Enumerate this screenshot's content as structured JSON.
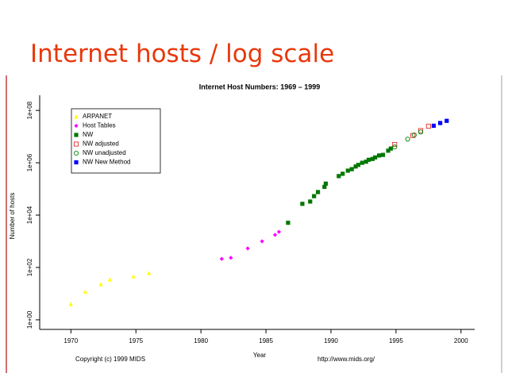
{
  "slide_title": "Internet hosts / log scale",
  "chart_data": {
    "type": "scatter",
    "title": "Internet Host Numbers: 1969 – 1999",
    "x_label": "Year",
    "y_label": "Number of hosts",
    "annotations": [
      "Copyright (c) 1999 MIDS",
      "http://www.mids.org/"
    ],
    "log_y": true,
    "legend_position": "upper-left",
    "xlim": [
      1967.6,
      2001.05
    ],
    "xticks": [
      1970,
      1975,
      1980,
      1985,
      1990,
      1995,
      2000
    ],
    "ylim": [
      0.43,
      380000000
    ],
    "yticks": [
      {
        "value": 1,
        "label": "1e+00"
      },
      {
        "value": 100,
        "label": "1e+02"
      },
      {
        "value": 10000,
        "label": "1e+04"
      },
      {
        "value": 1000000,
        "label": "1e+06"
      },
      {
        "value": 100000000,
        "label": "1e+08"
      }
    ],
    "series": [
      {
        "name": "ARPANET",
        "color": "#ffff00",
        "marker": "triangle",
        "x": [
          1970.0,
          1971.1,
          1972.3,
          1973.0,
          1974.8,
          1976.0
        ],
        "values": [
          4,
          12,
          23,
          35,
          46,
          62
        ]
      },
      {
        "name": "Host Tables",
        "color": "#ff00ff",
        "marker": "diamond",
        "x": [
          1981.6,
          1982.3,
          1983.6,
          1984.7,
          1985.7,
          1986.0
        ],
        "values": [
          213,
          235,
          532,
          1000,
          1760,
          2300
        ]
      },
      {
        "name": "NW",
        "color": "#007800",
        "marker": "square",
        "x": [
          1986.7,
          1987.8,
          1988.4,
          1988.7,
          1989.0,
          1989.5,
          1989.6,
          1990.6,
          1990.9,
          1991.3,
          1991.6,
          1991.9,
          1992.1,
          1992.4,
          1992.7,
          1992.9,
          1993.2,
          1993.4,
          1993.7,
          1994.0,
          1994.4,
          1994.6
        ],
        "values": [
          5100,
          27000,
          33000,
          53000,
          76000,
          120000,
          160000,
          310000,
          380000,
          500000,
          570000,
          720000,
          830000,
          1000000,
          1100000,
          1300000,
          1400000,
          1600000,
          1900000,
          2000000,
          2900000,
          3500000
        ]
      },
      {
        "name": "NW adjusted",
        "color": "#e03030",
        "marker": "open-square",
        "x": [
          1994.9,
          1996.3,
          1996.9,
          1997.5
        ],
        "values": [
          5000000,
          11000000,
          17000000,
          25000000
        ]
      },
      {
        "name": "NW unadjusted",
        "color": "#008000",
        "marker": "open-circle",
        "x": [
          1994.9,
          1995.9,
          1996.4,
          1996.9
        ],
        "values": [
          4000000,
          8000000,
          11500000,
          15000000
        ]
      },
      {
        "name": "NW New Method",
        "color": "#0000ff",
        "marker": "square",
        "x": [
          1997.9,
          1998.4,
          1998.9
        ],
        "values": [
          26000000,
          33000000,
          40000000
        ]
      }
    ]
  }
}
